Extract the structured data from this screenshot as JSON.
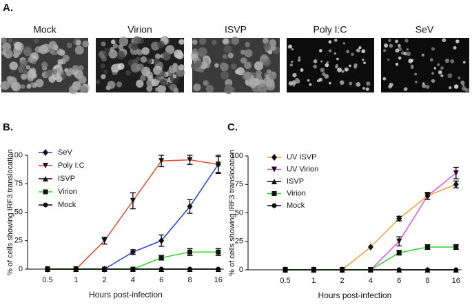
{
  "panels": {
    "a": "A.",
    "b": "B.",
    "c": "C."
  },
  "images": [
    "Mock",
    "Virion",
    "ISVP",
    "Poly I:C",
    "SeV"
  ],
  "chart_data": [
    {
      "type": "line",
      "xlabel": "Hours post-infection",
      "ylabel": "% of cells showing IRF3 translocation",
      "categories": [
        "0.5",
        "1",
        "2",
        "4",
        "6",
        "8",
        "16"
      ],
      "ylim": [
        0,
        100
      ],
      "yticks": [
        0,
        25,
        50,
        75,
        100
      ],
      "legend": "upper-left",
      "series": [
        {
          "name": "SeV",
          "color": "#1f3fd6",
          "marker": "diamond",
          "values": [
            0,
            0,
            0,
            15,
            25,
            55,
            92
          ],
          "errors": [
            null,
            null,
            null,
            2,
            5,
            6,
            8
          ]
        },
        {
          "name": "Poly I:C",
          "color": "#e8452a",
          "marker": "triangle-down",
          "values": [
            0,
            0,
            25,
            60,
            95,
            96,
            92
          ],
          "errors": [
            null,
            null,
            3,
            7,
            5,
            4,
            7
          ]
        },
        {
          "name": "ISVP",
          "color": "#000000",
          "marker": "triangle-up",
          "values": [
            0,
            0,
            0,
            0,
            0,
            0,
            0
          ],
          "errors": [
            null,
            null,
            null,
            null,
            null,
            null,
            null
          ]
        },
        {
          "name": "Virion",
          "color": "#2bd62b",
          "marker": "square",
          "values": [
            0,
            0,
            0,
            0,
            10,
            15,
            15
          ],
          "errors": [
            null,
            null,
            null,
            null,
            2,
            3,
            3
          ]
        },
        {
          "name": "Mock",
          "color": "#000000",
          "marker": "circle",
          "values": [
            0,
            0,
            0,
            0,
            0,
            0,
            0
          ],
          "errors": [
            null,
            null,
            null,
            null,
            null,
            null,
            null
          ]
        }
      ]
    },
    {
      "type": "line",
      "xlabel": "Hours post-infection",
      "ylabel": "% of cells showing IRF3 translocation",
      "categories": [
        "0.5",
        "1",
        "2",
        "4",
        "6",
        "8",
        "16"
      ],
      "ylim": [
        0,
        100
      ],
      "yticks": [
        0,
        25,
        50,
        75,
        100
      ],
      "legend": "upper-left",
      "series": [
        {
          "name": "UV ISVP",
          "color": "#f0a030",
          "marker": "diamond",
          "values": [
            0,
            0,
            0,
            20,
            45,
            65,
            75
          ],
          "errors": [
            null,
            null,
            null,
            null,
            2,
            3,
            3
          ]
        },
        {
          "name": "UV Virion",
          "color": "#e050e8",
          "marker": "triangle-down",
          "values": [
            0,
            0,
            0,
            0,
            25,
            65,
            85
          ],
          "errors": [
            null,
            null,
            null,
            null,
            4,
            3,
            5
          ]
        },
        {
          "name": "ISVP",
          "color": "#000000",
          "marker": "triangle-up",
          "values": [
            0,
            0,
            0,
            0,
            0,
            0,
            0
          ],
          "errors": [
            null,
            null,
            null,
            null,
            null,
            null,
            null
          ]
        },
        {
          "name": "Virion",
          "color": "#2bd62b",
          "marker": "square",
          "values": [
            0,
            0,
            0,
            0,
            15,
            20,
            20
          ],
          "errors": [
            null,
            null,
            null,
            null,
            2,
            2,
            2
          ]
        },
        {
          "name": "Mock",
          "color": "#000000",
          "marker": "circle",
          "values": [
            0,
            0,
            0,
            0,
            0,
            0,
            0
          ],
          "errors": [
            null,
            null,
            null,
            null,
            null,
            null,
            null
          ]
        }
      ]
    }
  ]
}
